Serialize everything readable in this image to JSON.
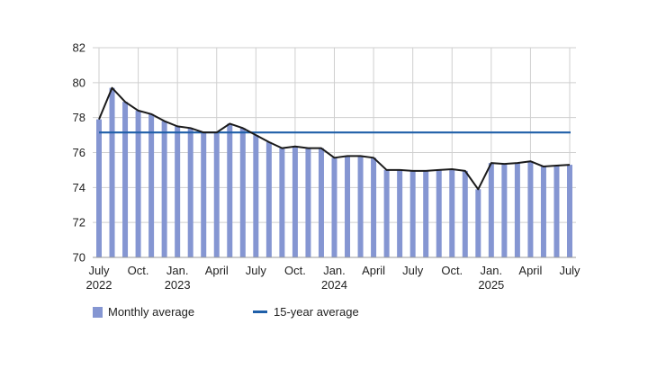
{
  "chart_data": {
    "type": "bar",
    "title": "",
    "xlabel": "",
    "ylabel": "",
    "ylim": [
      70,
      82
    ],
    "yticks": [
      70,
      72,
      74,
      76,
      78,
      80,
      82
    ],
    "grid": true,
    "legend_position": "bottom-left",
    "colors": {
      "bars": "#8596d2",
      "line": "#1a1a1a",
      "reference": "#1f5fa8",
      "grid": "#cfcfcf"
    },
    "months": [
      "2022-07",
      "2022-08",
      "2022-09",
      "2022-10",
      "2022-11",
      "2022-12",
      "2023-01",
      "2023-02",
      "2023-03",
      "2023-04",
      "2023-05",
      "2023-06",
      "2023-07",
      "2023-08",
      "2023-09",
      "2023-10",
      "2023-11",
      "2023-12",
      "2024-01",
      "2024-02",
      "2024-03",
      "2024-04",
      "2024-05",
      "2024-06",
      "2024-07",
      "2024-08",
      "2024-09",
      "2024-10",
      "2024-11",
      "2024-12",
      "2025-01",
      "2025-02",
      "2025-03",
      "2025-04",
      "2025-05",
      "2025-06",
      "2025-07"
    ],
    "x_tick_labels": [
      {
        "index": 0,
        "line1": "July",
        "line2": "2022"
      },
      {
        "index": 3,
        "line1": "Oct.",
        "line2": ""
      },
      {
        "index": 6,
        "line1": "Jan.",
        "line2": "2023"
      },
      {
        "index": 9,
        "line1": "April",
        "line2": ""
      },
      {
        "index": 12,
        "line1": "July",
        "line2": ""
      },
      {
        "index": 15,
        "line1": "Oct.",
        "line2": ""
      },
      {
        "index": 18,
        "line1": "Jan.",
        "line2": "2024"
      },
      {
        "index": 21,
        "line1": "April",
        "line2": ""
      },
      {
        "index": 24,
        "line1": "July",
        "line2": ""
      },
      {
        "index": 27,
        "line1": "Oct.",
        "line2": ""
      },
      {
        "index": 30,
        "line1": "Jan.",
        "line2": "2025"
      },
      {
        "index": 33,
        "line1": "April",
        "line2": ""
      },
      {
        "index": 36,
        "line1": "July",
        "line2": ""
      }
    ],
    "series": [
      {
        "name": "Monthly average",
        "kind": "bar",
        "values": [
          77.9,
          79.7,
          78.9,
          78.4,
          78.2,
          77.8,
          77.5,
          77.4,
          77.15,
          77.15,
          77.65,
          77.4,
          77.0,
          76.6,
          76.25,
          76.35,
          76.25,
          76.25,
          75.7,
          75.8,
          75.8,
          75.7,
          75.0,
          75.0,
          74.95,
          74.95,
          75.0,
          75.05,
          74.95,
          73.9,
          75.4,
          75.35,
          75.4,
          75.5,
          75.2,
          75.25,
          75.3
        ]
      },
      {
        "name": "15-year average",
        "kind": "line",
        "value": 77.15
      }
    ],
    "legend": [
      "Monthly average",
      "15-year average"
    ]
  }
}
